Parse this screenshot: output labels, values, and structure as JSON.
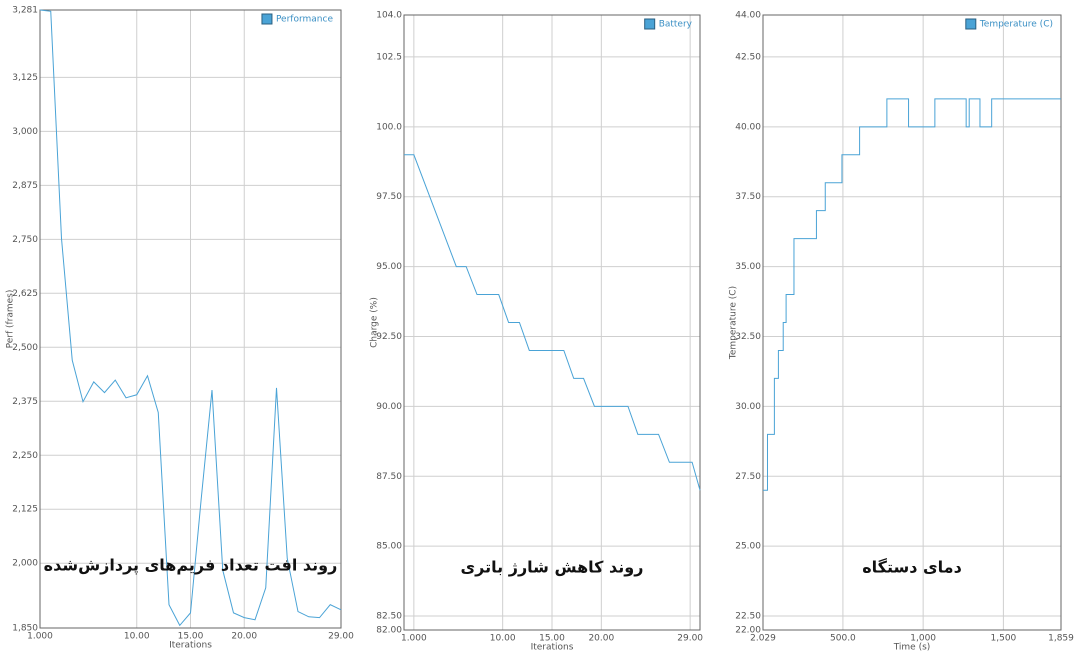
{
  "chart_data": [
    {
      "type": "line",
      "legend": "top-right",
      "grid": true,
      "xlabel": "Iterations",
      "ylabel": "Perf (frames)",
      "annotation": "روند افت تعداد فریم‌های پردازش‌شده",
      "xlim": [
        1,
        29
      ],
      "ylim": [
        1850,
        3281
      ],
      "xticks": [
        {
          "value": 1,
          "label": "1.000"
        },
        {
          "value": 10,
          "label": "10.00"
        },
        {
          "value": 15,
          "label": "15.00"
        },
        {
          "value": 20,
          "label": "20.00"
        },
        {
          "value": 29,
          "label": "29.00"
        }
      ],
      "yticks": [
        {
          "value": 1850,
          "label": "1,850"
        },
        {
          "value": 2000,
          "label": "2,000"
        },
        {
          "value": 2125,
          "label": "2,125"
        },
        {
          "value": 2250,
          "label": "2,250"
        },
        {
          "value": 2375,
          "label": "2,375"
        },
        {
          "value": 2500,
          "label": "2,500"
        },
        {
          "value": 2625,
          "label": "2,625"
        },
        {
          "value": 2750,
          "label": "2,750"
        },
        {
          "value": 2875,
          "label": "2,875"
        },
        {
          "value": 3000,
          "label": "3,000"
        },
        {
          "value": 3125,
          "label": "3,125"
        },
        {
          "value": 3281,
          "label": "3,281"
        }
      ],
      "series": [
        {
          "name": "Performance",
          "color": "#4aa3d6",
          "x": [
            1,
            2,
            3,
            4,
            5,
            6,
            7,
            8,
            9,
            10,
            11,
            12,
            13,
            14,
            15,
            16,
            17,
            18,
            19,
            20,
            21,
            22,
            23,
            24,
            25,
            26,
            27,
            28,
            29
          ],
          "values": [
            3281,
            3278,
            2752,
            2470,
            2374,
            2420,
            2395,
            2424,
            2383,
            2390,
            2434,
            2349,
            1904,
            1856,
            1885,
            2150,
            2401,
            1984,
            1885,
            1874,
            1869,
            1943,
            2406,
            2011,
            1888,
            1876,
            1874,
            1904,
            1892
          ]
        }
      ]
    },
    {
      "type": "line",
      "legend": "top-right",
      "grid": true,
      "xlabel": "Iterations",
      "ylabel": "Charge (%)",
      "annotation": "روند کاهش شارژ باتری",
      "xlim": [
        0,
        30
      ],
      "ylim": [
        82,
        104
      ],
      "xticks": [
        {
          "value": 1,
          "label": "1.000"
        },
        {
          "value": 10,
          "label": "10.00"
        },
        {
          "value": 15,
          "label": "15.00"
        },
        {
          "value": 20,
          "label": "20.00"
        },
        {
          "value": 29,
          "label": "29.00"
        }
      ],
      "yticks": [
        {
          "value": 82,
          "label": "82.00"
        },
        {
          "value": 82.5,
          "label": "82.50"
        },
        {
          "value": 85,
          "label": "85.00"
        },
        {
          "value": 87.5,
          "label": "87.50"
        },
        {
          "value": 90,
          "label": "90.00"
        },
        {
          "value": 92.5,
          "label": "92.50"
        },
        {
          "value": 95,
          "label": "95.00"
        },
        {
          "value": 97.5,
          "label": "97.50"
        },
        {
          "value": 100,
          "label": "100.0"
        },
        {
          "value": 102.5,
          "label": "102.5"
        },
        {
          "value": 104,
          "label": "104.0"
        }
      ],
      "series": [
        {
          "name": "Battery",
          "color": "#4aa3d6",
          "x": [
            0,
            1,
            5.3,
            6.3,
            7.4,
            9.6,
            10.6,
            11.7,
            12.7,
            16.2,
            17.2,
            18.2,
            19.3,
            22.7,
            23.7,
            25.8,
            26.9,
            29.2,
            30
          ],
          "values": [
            99,
            99,
            95,
            95,
            94,
            94,
            93,
            93,
            92,
            92,
            91,
            91,
            90,
            90,
            89,
            89,
            88,
            88,
            87
          ]
        }
      ]
    },
    {
      "type": "line",
      "legend": "top-right",
      "grid": true,
      "drawstyle": "steps-post",
      "xlabel": "Time (s)",
      "ylabel": "Temperature (C)",
      "annotation": "دمای دستگاه",
      "xlim": [
        2.029,
        1859
      ],
      "ylim": [
        22,
        44
      ],
      "xticks": [
        {
          "value": 2.029,
          "label": "2.029"
        },
        {
          "value": 500,
          "label": "500.0"
        },
        {
          "value": 1000,
          "label": "1,000"
        },
        {
          "value": 1500,
          "label": "1,500"
        },
        {
          "value": 1859,
          "label": "1,859"
        }
      ],
      "yticks": [
        {
          "value": 22,
          "label": "22.00"
        },
        {
          "value": 22.5,
          "label": "22.50"
        },
        {
          "value": 25,
          "label": "25.00"
        },
        {
          "value": 27.5,
          "label": "27.50"
        },
        {
          "value": 30,
          "label": "30.00"
        },
        {
          "value": 32.5,
          "label": "32.50"
        },
        {
          "value": 35,
          "label": "35.00"
        },
        {
          "value": 37.5,
          "label": "37.50"
        },
        {
          "value": 40,
          "label": "40.00"
        },
        {
          "value": 42.5,
          "label": "42.50"
        },
        {
          "value": 44,
          "label": "44.00"
        }
      ],
      "series": [
        {
          "name": "Temperature (C)",
          "color": "#4aa3d6",
          "x": [
            2.029,
            30,
            73,
            98,
            128,
            146,
            195,
            335,
            390,
            494,
            604,
            774,
            909,
            1073,
            1268,
            1287,
            1354,
            1427,
            1859
          ],
          "values": [
            27,
            29,
            31,
            32,
            33,
            34,
            36,
            37,
            38,
            39,
            40,
            41,
            40,
            41,
            40,
            41,
            40,
            41,
            41
          ]
        }
      ]
    }
  ]
}
